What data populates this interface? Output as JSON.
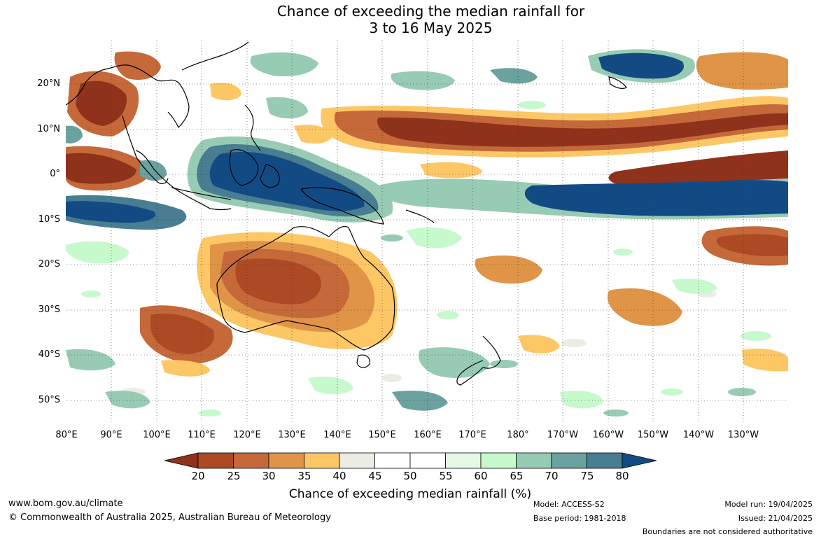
{
  "title": {
    "line1": "Chance of exceeding the median rainfall for",
    "line2": "3 to 16 May 2025"
  },
  "map": {
    "lat_labels": [
      "20°N",
      "10°N",
      "0°",
      "10°S",
      "20°S",
      "30°S",
      "40°S",
      "50°S"
    ],
    "lon_labels": [
      "80°E",
      "90°E",
      "100°E",
      "110°E",
      "120°E",
      "130°E",
      "140°E",
      "150°E",
      "160°E",
      "170°E",
      "180°",
      "170°W",
      "160°W",
      "150°W",
      "140°W",
      "130°W"
    ],
    "colors": {
      "lt20": "#8f321c",
      "20_25": "#ad4a26",
      "25_30": "#c5693a",
      "30_35": "#e09447",
      "35_40": "#fdc766",
      "40_45": "#ecebe4",
      "45_55": "#ffffff",
      "55_60": "#e6f8e6",
      "60_65": "#c6f9cc",
      "65_70": "#98cbb3",
      "70_75": "#6ba19f",
      "75_80": "#487d92",
      "gt80": "#124b84"
    }
  },
  "colorbar": {
    "ticks": [
      "20",
      "25",
      "30",
      "35",
      "40",
      "45",
      "50",
      "55",
      "60",
      "65",
      "70",
      "75",
      "80"
    ],
    "title": "Chance of exceeding median rainfall (%)"
  },
  "footer": {
    "website": "www.bom.gov.au/climate",
    "copyright": "© Commonwealth of Australia 2025, Australian Bureau of Meteorology",
    "model": "Model: ACCESS-S2",
    "base_period": "Base period: 1981-2018",
    "model_run": "Model run: 19/04/2025",
    "issued": "Issued: 21/04/2025",
    "disclaimer": "Boundaries are not considered authoritative"
  }
}
